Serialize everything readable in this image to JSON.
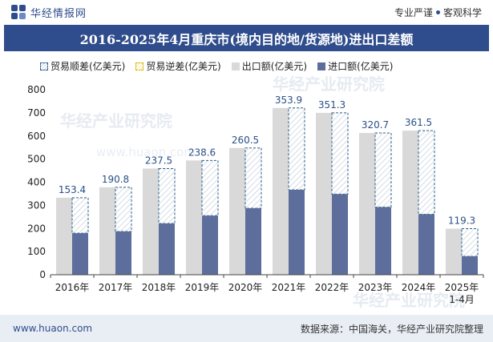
{
  "header": {
    "brand_name": "华经情报网",
    "slogan_left": "专业严谨",
    "slogan_right": "客观科学"
  },
  "title": "2016-2025年4月重庆市(境内目的地/货源地)进出口差额",
  "legend": {
    "surplus": "贸易顺差(亿美元)",
    "deficit": "贸易逆差(亿美元)",
    "export": "出口额(亿美元)",
    "import": "进口额(亿美元)"
  },
  "watermark": "华经产业研究院",
  "watermark_url": "www.huaon.com",
  "footer": {
    "url": "www.huaon.com",
    "source": "数据来源：中国海关，华经产业研究院整理"
  },
  "colors": {
    "header_bg": "#2f4d8c",
    "export_bar": "#d9d9d9",
    "import_bar": "#5d6e9c",
    "surplus_stroke": "#2b5f8e",
    "footer_bg": "#e9eef4"
  },
  "chart_data": {
    "type": "bar",
    "categories": [
      "2016年",
      "2017年",
      "2018年",
      "2019年",
      "2020年",
      "2021年",
      "2022年",
      "2023年",
      "2024年",
      "2025年\n1-4月"
    ],
    "series": [
      {
        "name": "出口额(亿美元)",
        "values": [
          333.0,
          378.0,
          459.0,
          494.0,
          548.0,
          721.0,
          700.0,
          613.0,
          623.0,
          199.0
        ]
      },
      {
        "name": "进口额(亿美元)",
        "values": [
          179.6,
          187.2,
          221.5,
          255.4,
          287.5,
          367.1,
          348.7,
          292.3,
          261.5,
          79.7
        ]
      },
      {
        "name": "贸易顺差(亿美元)",
        "values": [
          153.4,
          190.8,
          237.5,
          238.6,
          260.5,
          353.9,
          351.3,
          320.7,
          361.5,
          119.3
        ]
      }
    ],
    "ylim": [
      0,
      800
    ],
    "yticks": [
      0,
      100,
      200,
      300,
      400,
      500,
      600,
      700,
      800
    ],
    "grid": false,
    "legend_position": "top-left"
  }
}
